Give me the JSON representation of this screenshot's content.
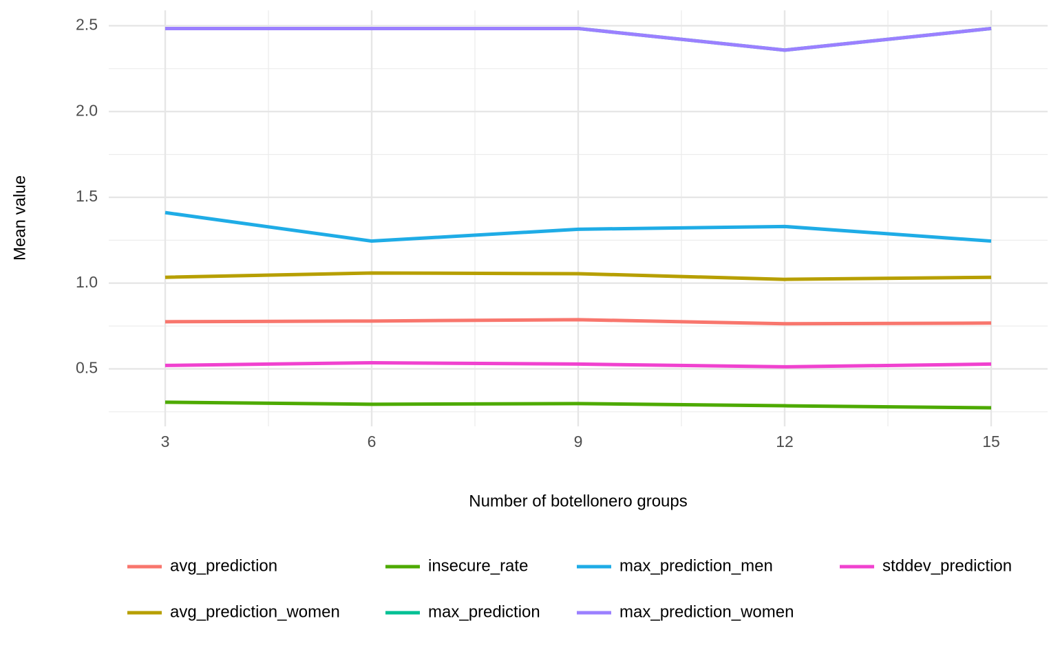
{
  "chart_data": {
    "type": "line",
    "x_label": "Number of botellonero groups",
    "y_label": "Mean value",
    "x": [
      3,
      6,
      9,
      12,
      15
    ],
    "xlim": [
      2.18,
      15.82
    ],
    "xticks": [
      3,
      6,
      9,
      12,
      15
    ],
    "x_minor_grid": [
      4.5,
      7.5,
      10.5,
      13.5
    ],
    "ylim": [
      0.165,
      2.59
    ],
    "yticks": [
      {
        "value": 0.5,
        "label": "0.5"
      },
      {
        "value": 1,
        "label": "1.0"
      },
      {
        "value": 1.5,
        "label": "1.5"
      },
      {
        "value": 2,
        "label": "2.0"
      },
      {
        "value": 2.5,
        "label": "2.5"
      }
    ],
    "y_minor_grid": [
      0.25,
      0.75,
      1.25,
      1.75,
      2.25
    ],
    "grid": true,
    "legend": "bottom",
    "series": [
      {
        "name": "avg_prediction",
        "color": "#F8766D",
        "values": [
          0.775,
          0.779,
          0.787,
          0.763,
          0.767
        ]
      },
      {
        "name": "avg_prediction_women",
        "color": "#B79F00",
        "values": [
          1.034,
          1.059,
          1.055,
          1.022,
          1.034
        ]
      },
      {
        "name": "insecure_rate",
        "color": "#4DAA00",
        "values": [
          0.306,
          0.294,
          0.298,
          0.285,
          0.273
        ]
      },
      {
        "name": "max_prediction",
        "color": "#00C094",
        "values": [
          2.484,
          2.484,
          2.484,
          2.358,
          2.484
        ]
      },
      {
        "name": "max_prediction_men",
        "color": "#1FACE6",
        "values": [
          1.411,
          1.245,
          1.314,
          1.33,
          1.245
        ]
      },
      {
        "name": "max_prediction_women",
        "color": "#9B80FF",
        "values": [
          2.484,
          2.484,
          2.484,
          2.358,
          2.484
        ]
      },
      {
        "name": "stddev_prediction",
        "color": "#F042CF",
        "values": [
          0.52,
          0.536,
          0.528,
          0.512,
          0.528
        ]
      }
    ]
  }
}
